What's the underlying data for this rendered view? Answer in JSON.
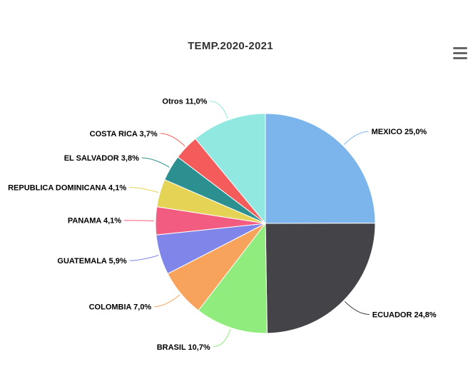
{
  "chart_data": {
    "type": "pie",
    "title": "TEMP.2020-2021",
    "slices": [
      {
        "name": "MEXICO",
        "value": 25.0,
        "label": "MEXICO 25,0%",
        "color": "#7cb5ec"
      },
      {
        "name": "ECUADOR",
        "value": 24.8,
        "label": "ECUADOR 24,8%",
        "color": "#434348"
      },
      {
        "name": "BRASIL",
        "value": 10.7,
        "label": "BRASIL 10,7%",
        "color": "#90ed7d"
      },
      {
        "name": "COLOMBIA",
        "value": 7.0,
        "label": "COLOMBIA 7,0%",
        "color": "#f7a35c"
      },
      {
        "name": "GUATEMALA",
        "value": 5.9,
        "label": "GUATEMALA 5,9%",
        "color": "#8085e9"
      },
      {
        "name": "PANAMA",
        "value": 4.1,
        "label": "PANAMA 4,1%",
        "color": "#f15c80"
      },
      {
        "name": "REPUBLICA DOMINICANA",
        "value": 4.1,
        "label": "REPUBLICA DOMINICANA 4,1%",
        "color": "#e4d354"
      },
      {
        "name": "EL SALVADOR",
        "value": 3.8,
        "label": "EL SALVADOR 3,8%",
        "color": "#2b908f"
      },
      {
        "name": "COSTA RICA",
        "value": 3.7,
        "label": "COSTA RICA 3,7%",
        "color": "#f45b5b"
      },
      {
        "name": "Otros",
        "value": 11.0,
        "label": "Otros 11,0%",
        "color": "#91e8e1"
      }
    ]
  },
  "toolbar": {
    "menu_icon": "hamburger-menu-icon"
  }
}
